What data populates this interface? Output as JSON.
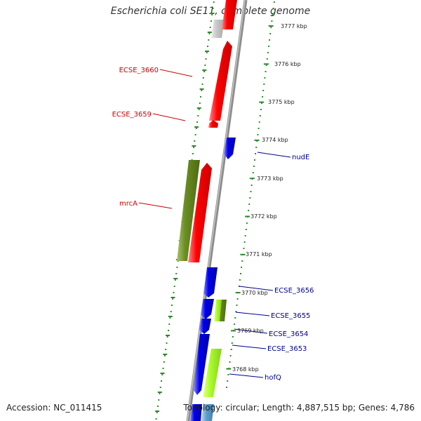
{
  "title": "Escherichia coli SE11, complete genome",
  "footer": {
    "accession": "Accession: NC_011415",
    "topology": "Topology: circular; Length: 4,887,515 bp; Genes: 4,786"
  },
  "colors": {
    "backbone": "#8c8c8c",
    "tick": "#2e8b2e",
    "forward_gene": "#ff0000",
    "reverse_gene": "#0000ee",
    "olive_gene": "#6b8e23",
    "light_green_gene": "#adff2f",
    "grey_gene": "#c8c8c8",
    "left_label": "#cc0000",
    "right_label": "#00008b"
  },
  "scale_labels": [
    "3777 kbp",
    "3776 kbp",
    "3775 kbp",
    "3774 kbp",
    "3773 kbp",
    "3772 kbp",
    "3771 kbp",
    "3770 kbp",
    "3769 kbp",
    "3768 kbp"
  ],
  "gene_labels_left": [
    "ECSE_3660",
    "ECSE_3659",
    "mrcA"
  ],
  "gene_labels_right": [
    "nudE",
    "ECSE_3656",
    "ECSE_3655",
    "ECSE_3654",
    "ECSE_3653",
    "hofQ"
  ]
}
